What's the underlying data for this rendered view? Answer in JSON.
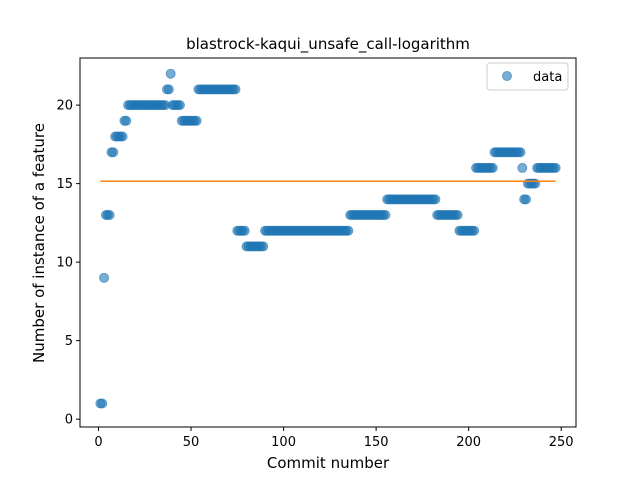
{
  "chart_data": {
    "type": "scatter",
    "title": "blastrock-kaqui_unsafe_call-logarithm",
    "xlabel": "Commit number",
    "ylabel": "Number of instance of a feature",
    "xlim": [
      -10,
      258
    ],
    "ylim": [
      -0.5,
      23
    ],
    "xticks": [
      0,
      50,
      100,
      150,
      200,
      250
    ],
    "yticks": [
      0,
      5,
      10,
      15,
      20
    ],
    "grid": false,
    "legend": {
      "placement": "top-right",
      "entries": [
        "data"
      ]
    },
    "colors": {
      "points": "#1f77b4",
      "fit_line": "#ff7f0e"
    },
    "series": [
      {
        "name": "data",
        "kind": "scatter",
        "points": [
          [
            1,
            1
          ],
          [
            2,
            1
          ],
          [
            3,
            9
          ],
          [
            4,
            13
          ],
          [
            5,
            13
          ],
          [
            6,
            13
          ],
          [
            7,
            17
          ],
          [
            8,
            17
          ],
          [
            9,
            18
          ],
          [
            10,
            18
          ],
          [
            11,
            18
          ],
          [
            12,
            18
          ],
          [
            13,
            18
          ],
          [
            14,
            19
          ],
          [
            15,
            19
          ],
          [
            16,
            20
          ],
          [
            17,
            20
          ],
          [
            18,
            20
          ],
          [
            19,
            20
          ],
          [
            20,
            20
          ],
          [
            21,
            20
          ],
          [
            22,
            20
          ],
          [
            23,
            20
          ],
          [
            24,
            20
          ],
          [
            25,
            20
          ],
          [
            26,
            20
          ],
          [
            27,
            20
          ],
          [
            28,
            20
          ],
          [
            29,
            20
          ],
          [
            30,
            20
          ],
          [
            31,
            20
          ],
          [
            32,
            20
          ],
          [
            33,
            20
          ],
          [
            34,
            20
          ],
          [
            35,
            20
          ],
          [
            36,
            20
          ],
          [
            37,
            21
          ],
          [
            38,
            21
          ],
          [
            39,
            22
          ],
          [
            40,
            20
          ],
          [
            41,
            20
          ],
          [
            42,
            20
          ],
          [
            43,
            20
          ],
          [
            44,
            20
          ],
          [
            45,
            19
          ],
          [
            46,
            19
          ],
          [
            47,
            19
          ],
          [
            48,
            19
          ],
          [
            49,
            19
          ],
          [
            50,
            19
          ],
          [
            51,
            19
          ],
          [
            52,
            19
          ],
          [
            53,
            19
          ],
          [
            54,
            21
          ],
          [
            55,
            21
          ],
          [
            56,
            21
          ],
          [
            57,
            21
          ],
          [
            58,
            21
          ],
          [
            59,
            21
          ],
          [
            60,
            21
          ],
          [
            61,
            21
          ],
          [
            62,
            21
          ],
          [
            63,
            21
          ],
          [
            64,
            21
          ],
          [
            65,
            21
          ],
          [
            66,
            21
          ],
          [
            67,
            21
          ],
          [
            68,
            21
          ],
          [
            69,
            21
          ],
          [
            70,
            21
          ],
          [
            71,
            21
          ],
          [
            72,
            21
          ],
          [
            73,
            21
          ],
          [
            74,
            21
          ],
          [
            75,
            12
          ],
          [
            76,
            12
          ],
          [
            77,
            12
          ],
          [
            78,
            12
          ],
          [
            79,
            12
          ],
          [
            80,
            11
          ],
          [
            81,
            11
          ],
          [
            82,
            11
          ],
          [
            83,
            11
          ],
          [
            84,
            11
          ],
          [
            85,
            11
          ],
          [
            86,
            11
          ],
          [
            87,
            11
          ],
          [
            88,
            11
          ],
          [
            89,
            11
          ],
          [
            90,
            12
          ],
          [
            91,
            12
          ],
          [
            92,
            12
          ],
          [
            93,
            12
          ],
          [
            94,
            12
          ],
          [
            95,
            12
          ],
          [
            96,
            12
          ],
          [
            97,
            12
          ],
          [
            98,
            12
          ],
          [
            99,
            12
          ],
          [
            100,
            12
          ],
          [
            101,
            12
          ],
          [
            102,
            12
          ],
          [
            103,
            12
          ],
          [
            104,
            12
          ],
          [
            105,
            12
          ],
          [
            106,
            12
          ],
          [
            107,
            12
          ],
          [
            108,
            12
          ],
          [
            109,
            12
          ],
          [
            110,
            12
          ],
          [
            111,
            12
          ],
          [
            112,
            12
          ],
          [
            113,
            12
          ],
          [
            114,
            12
          ],
          [
            115,
            12
          ],
          [
            116,
            12
          ],
          [
            117,
            12
          ],
          [
            118,
            12
          ],
          [
            119,
            12
          ],
          [
            120,
            12
          ],
          [
            121,
            12
          ],
          [
            122,
            12
          ],
          [
            123,
            12
          ],
          [
            124,
            12
          ],
          [
            125,
            12
          ],
          [
            126,
            12
          ],
          [
            127,
            12
          ],
          [
            128,
            12
          ],
          [
            129,
            12
          ],
          [
            130,
            12
          ],
          [
            131,
            12
          ],
          [
            132,
            12
          ],
          [
            133,
            12
          ],
          [
            134,
            12
          ],
          [
            135,
            12
          ],
          [
            136,
            13
          ],
          [
            137,
            13
          ],
          [
            138,
            13
          ],
          [
            139,
            13
          ],
          [
            140,
            13
          ],
          [
            141,
            13
          ],
          [
            142,
            13
          ],
          [
            143,
            13
          ],
          [
            144,
            13
          ],
          [
            145,
            13
          ],
          [
            146,
            13
          ],
          [
            147,
            13
          ],
          [
            148,
            13
          ],
          [
            149,
            13
          ],
          [
            150,
            13
          ],
          [
            151,
            13
          ],
          [
            152,
            13
          ],
          [
            153,
            13
          ],
          [
            154,
            13
          ],
          [
            155,
            13
          ],
          [
            156,
            14
          ],
          [
            157,
            14
          ],
          [
            158,
            14
          ],
          [
            159,
            14
          ],
          [
            160,
            14
          ],
          [
            161,
            14
          ],
          [
            162,
            14
          ],
          [
            163,
            14
          ],
          [
            164,
            14
          ],
          [
            165,
            14
          ],
          [
            166,
            14
          ],
          [
            167,
            14
          ],
          [
            168,
            14
          ],
          [
            169,
            14
          ],
          [
            170,
            14
          ],
          [
            171,
            14
          ],
          [
            172,
            14
          ],
          [
            173,
            14
          ],
          [
            174,
            14
          ],
          [
            175,
            14
          ],
          [
            176,
            14
          ],
          [
            177,
            14
          ],
          [
            178,
            14
          ],
          [
            179,
            14
          ],
          [
            180,
            14
          ],
          [
            181,
            14
          ],
          [
            182,
            14
          ],
          [
            183,
            13
          ],
          [
            184,
            13
          ],
          [
            185,
            13
          ],
          [
            186,
            13
          ],
          [
            187,
            13
          ],
          [
            188,
            13
          ],
          [
            189,
            13
          ],
          [
            190,
            13
          ],
          [
            191,
            13
          ],
          [
            192,
            13
          ],
          [
            193,
            13
          ],
          [
            194,
            13
          ],
          [
            195,
            12
          ],
          [
            196,
            12
          ],
          [
            197,
            12
          ],
          [
            198,
            12
          ],
          [
            199,
            12
          ],
          [
            200,
            12
          ],
          [
            201,
            12
          ],
          [
            202,
            12
          ],
          [
            203,
            12
          ],
          [
            204,
            16
          ],
          [
            205,
            16
          ],
          [
            206,
            16
          ],
          [
            207,
            16
          ],
          [
            208,
            16
          ],
          [
            209,
            16
          ],
          [
            210,
            16
          ],
          [
            211,
            16
          ],
          [
            212,
            16
          ],
          [
            213,
            16
          ],
          [
            214,
            17
          ],
          [
            215,
            17
          ],
          [
            216,
            17
          ],
          [
            217,
            17
          ],
          [
            218,
            17
          ],
          [
            219,
            17
          ],
          [
            220,
            17
          ],
          [
            221,
            17
          ],
          [
            222,
            17
          ],
          [
            223,
            17
          ],
          [
            224,
            17
          ],
          [
            225,
            17
          ],
          [
            226,
            17
          ],
          [
            227,
            17
          ],
          [
            228,
            17
          ],
          [
            229,
            16
          ],
          [
            230,
            14
          ],
          [
            231,
            14
          ],
          [
            232,
            15
          ],
          [
            233,
            15
          ],
          [
            234,
            15
          ],
          [
            235,
            15
          ],
          [
            236,
            15
          ],
          [
            237,
            16
          ],
          [
            238,
            16
          ],
          [
            239,
            16
          ],
          [
            240,
            16
          ],
          [
            241,
            16
          ],
          [
            242,
            16
          ],
          [
            243,
            16
          ],
          [
            244,
            16
          ],
          [
            245,
            16
          ],
          [
            246,
            16
          ],
          [
            247,
            16
          ]
        ]
      },
      {
        "name": "fit",
        "kind": "line",
        "x": [
          1,
          247
        ],
        "y": [
          15.15,
          15.15
        ]
      }
    ]
  }
}
